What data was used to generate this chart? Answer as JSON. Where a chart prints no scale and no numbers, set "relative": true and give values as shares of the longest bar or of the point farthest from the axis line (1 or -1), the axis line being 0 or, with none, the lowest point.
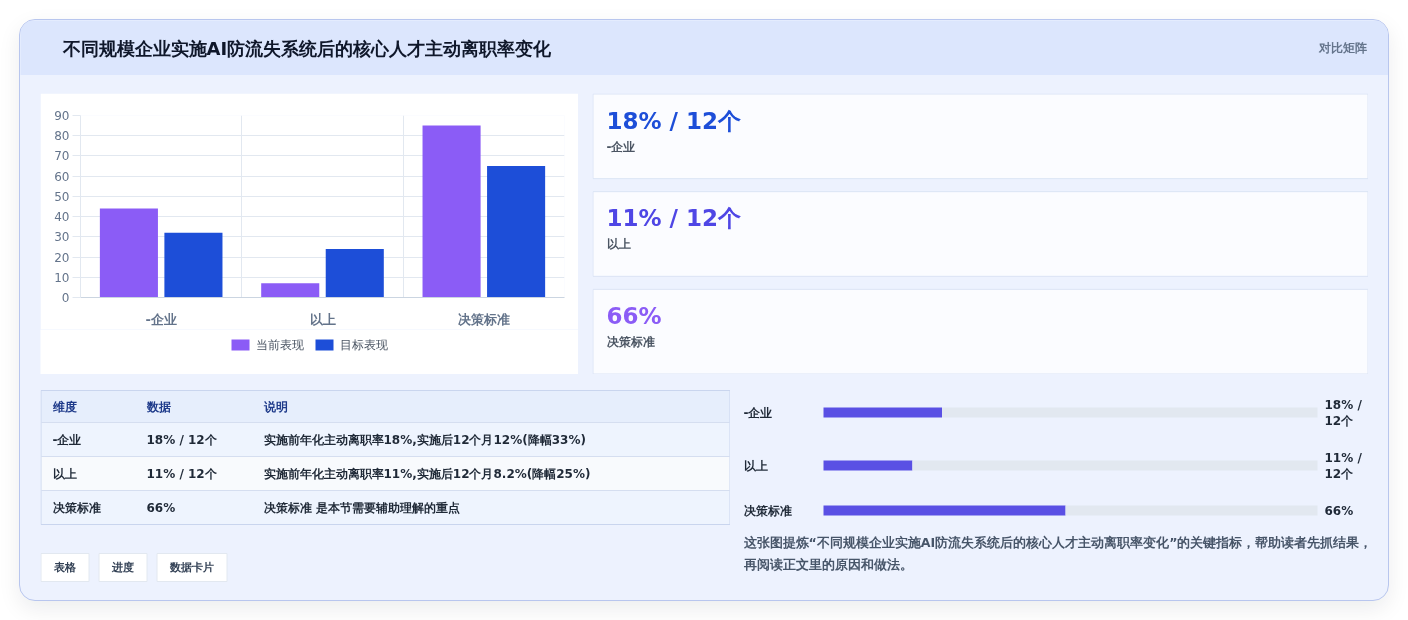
{
  "chart_data": [
    {
      "type": "other",
      "title": "不同规模企业实施AI防流失系统后的核心人才主动离职率变化",
      "annotations": [
        "对比矩阵"
      ]
    },
    {
      "type": "bar",
      "categories": [
        "-企业",
        "以上",
        "决策标准"
      ],
      "series": [
        {
          "name": "当前表现",
          "color": "#8b5cf6",
          "values": [
            44,
            7,
            85
          ]
        },
        {
          "name": "目标表现",
          "color": "#1d4ed8",
          "values": [
            32,
            24,
            65
          ]
        }
      ],
      "ylim": [
        0,
        90
      ],
      "yticks": [
        0,
        10,
        20,
        30,
        40,
        50,
        60,
        70,
        80,
        90
      ],
      "grid": true,
      "legend": "bottom"
    },
    {
      "type": "other",
      "categories": [
        "-企业",
        "以上",
        "决策标准"
      ],
      "value_labels": [
        "18% / 12个",
        "11% / 12个",
        "66%"
      ]
    },
    {
      "type": "other",
      "categories": [
        "维度",
        "数据",
        "说明"
      ],
      "annotations": [
        "-企业",
        "18% / 12个",
        "实施前年化主动离职率18%,实施后12个月12%(降幅33%)",
        "以上",
        "11% / 12个",
        "实施前年化主动离职率11%,实施后12个月8.2%(降幅25%)",
        "决策标准",
        "66%",
        "决策标准 是本节需要辅助理解的重点"
      ]
    },
    {
      "type": "bar",
      "orientation": "horizontal",
      "stacked": true,
      "relative": true,
      "categories": [
        "-企业",
        "以上",
        "决策标准"
      ],
      "y2_categories": [
        "18% / 12个",
        "11% / 12个",
        "66%"
      ],
      "series": [
        {
          "color": "#5a50e4",
          "values": [
            0.24,
            0.18,
            0.49
          ]
        },
        {
          "color": "#e2e8f0",
          "values": [
            0.76,
            0.82,
            0.51
          ]
        }
      ],
      "annotations": [
        "这张图提炼“不同规模企业实施AI防流失系统后的核心人才主动离职率变化”的关键指标，帮助读者先抓结果，再阅读正文里的原因和做法。"
      ]
    },
    {
      "type": "other",
      "annotations": [
        "表格",
        "进度",
        "数据卡片"
      ]
    }
  ]
}
